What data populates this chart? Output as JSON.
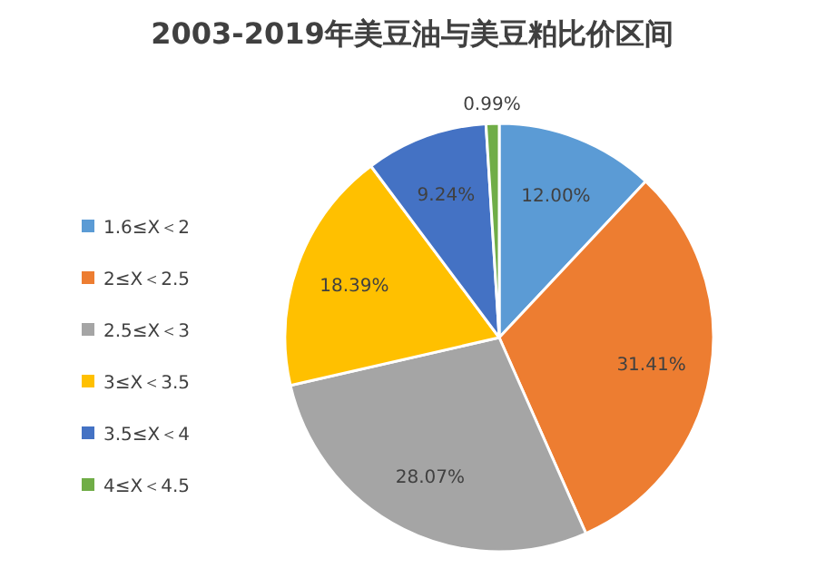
{
  "chart_data": {
    "type": "pie",
    "title": "2003-2019年美豆油与美豆粕比价区间",
    "categories": [
      "1.6≤X＜2",
      "2≤X＜2.5",
      "2.5≤X＜3",
      "3≤X＜3.5",
      "3.5≤X＜4",
      "4≤X＜4.5"
    ],
    "values": [
      12.0,
      31.41,
      28.07,
      18.39,
      9.24,
      0.99
    ],
    "colors": [
      "#5b9bd5",
      "#ed7d31",
      "#a5a5a5",
      "#ffc000",
      "#4472c4",
      "#70ad47"
    ],
    "value_labels": [
      "12.00%",
      "31.41%",
      "28.07%",
      "18.39%",
      "9.24%",
      "0.99%"
    ],
    "legend": "left"
  }
}
